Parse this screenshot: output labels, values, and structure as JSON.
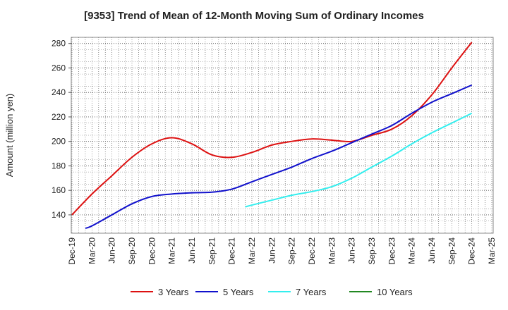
{
  "chart_data": {
    "type": "line",
    "title": "[9353]  Trend of Mean of 12-Month Moving Sum of Ordinary Incomes",
    "xlabel": "",
    "ylabel": "Amount (million yen)",
    "ylim": [
      125,
      285
    ],
    "yticks": [
      140,
      160,
      180,
      200,
      220,
      240,
      260,
      280
    ],
    "grid": true,
    "legend_position": "bottom",
    "categories": [
      "Dec-19",
      "Mar-20",
      "Jun-20",
      "Sep-20",
      "Dec-20",
      "Mar-21",
      "Jun-21",
      "Sep-21",
      "Dec-21",
      "Mar-22",
      "Jun-22",
      "Sep-22",
      "Dec-22",
      "Mar-23",
      "Jun-23",
      "Sep-23",
      "Dec-23",
      "Mar-24",
      "Jun-24",
      "Sep-24",
      "Dec-24",
      "Mar-25"
    ],
    "series": [
      {
        "name": "3 Years",
        "color": "#dd1111",
        "points": [
          [
            0,
            140
          ],
          [
            1,
            157
          ],
          [
            2,
            172
          ],
          [
            3,
            187
          ],
          [
            4,
            198
          ],
          [
            5,
            203
          ],
          [
            6,
            198
          ],
          [
            7,
            189
          ],
          [
            8,
            187
          ],
          [
            9,
            191
          ],
          [
            10,
            197
          ],
          [
            11,
            200
          ],
          [
            12,
            202
          ],
          [
            13,
            201
          ],
          [
            14,
            200
          ],
          [
            15,
            205
          ],
          [
            16,
            210
          ],
          [
            17,
            221
          ],
          [
            18,
            238
          ],
          [
            19,
            260
          ],
          [
            20,
            281
          ]
        ]
      },
      {
        "name": "5 Years",
        "color": "#1111cc",
        "points": [
          [
            0.67,
            129
          ],
          [
            1,
            131
          ],
          [
            2,
            140
          ],
          [
            3,
            149
          ],
          [
            4,
            155
          ],
          [
            5,
            157
          ],
          [
            6,
            158
          ],
          [
            7,
            158.5
          ],
          [
            8,
            161
          ],
          [
            9,
            167
          ],
          [
            10,
            173
          ],
          [
            11,
            179
          ],
          [
            12,
            186
          ],
          [
            13,
            192
          ],
          [
            14,
            199
          ],
          [
            15,
            206
          ],
          [
            16,
            213
          ],
          [
            17,
            223
          ],
          [
            18,
            232
          ],
          [
            19,
            239
          ],
          [
            20,
            246
          ]
        ]
      },
      {
        "name": "7 Years",
        "color": "#33eeee",
        "points": [
          [
            8.67,
            146.5
          ],
          [
            9,
            148
          ],
          [
            10,
            152
          ],
          [
            11,
            156
          ],
          [
            12,
            159
          ],
          [
            13,
            163
          ],
          [
            14,
            170
          ],
          [
            15,
            179
          ],
          [
            16,
            188
          ],
          [
            17,
            198
          ],
          [
            18,
            207
          ],
          [
            19,
            215
          ],
          [
            20,
            223
          ]
        ]
      },
      {
        "name": "10 Years",
        "color": "#228822",
        "points": []
      }
    ]
  }
}
